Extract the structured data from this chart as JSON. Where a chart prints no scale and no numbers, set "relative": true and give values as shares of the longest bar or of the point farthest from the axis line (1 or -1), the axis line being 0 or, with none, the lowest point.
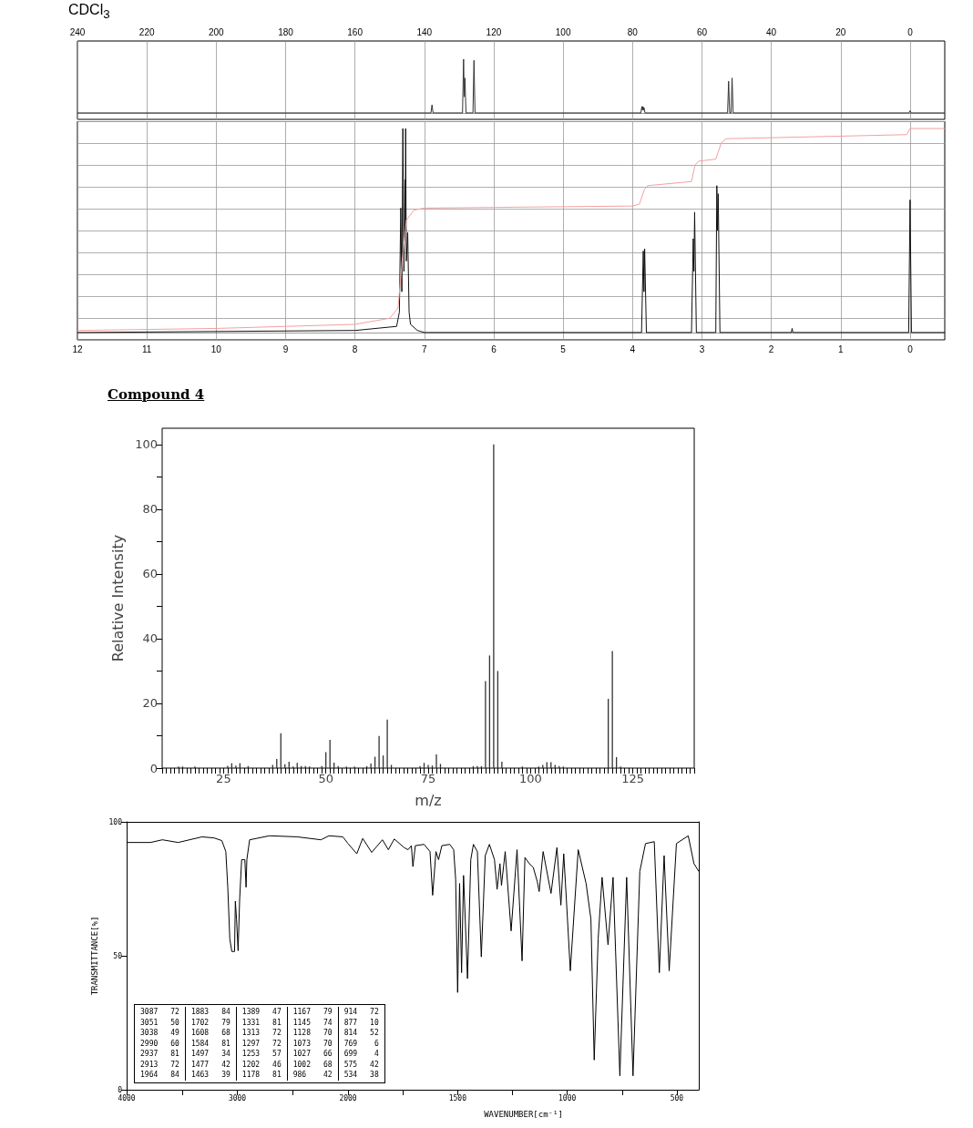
{
  "chart_data": [
    {
      "type": "line",
      "title": "CDCl$_{3}$",
      "relative": true,
      "xlim": [
        240,
        -10
      ],
      "xticks": [
        240,
        220,
        200,
        180,
        160,
        140,
        120,
        100,
        80,
        60,
        40,
        20,
        0
      ],
      "grid": "x",
      "series": [
        {
          "color": "#333333",
          "x": [
            240,
            138.1,
            137.8,
            137.5,
            129.0,
            128.7,
            128.5,
            128.3,
            128.0,
            126.0,
            125.7,
            125.4,
            77.6,
            77.3,
            77.15,
            77.0,
            76.85,
            76.7,
            76.4,
            52.6,
            52.3,
            52.0,
            51.6,
            51.3,
            51.0,
            0.3,
            0,
            -0.3,
            -10
          ],
          "values": [
            0,
            0,
            0.15,
            0,
            0,
            1.0,
            0.3,
            0.65,
            0,
            0,
            0.98,
            0,
            0,
            0.12,
            0.05,
            0.12,
            0.05,
            0.1,
            0,
            0,
            0.59,
            0,
            0,
            0.65,
            0,
            0,
            0.04,
            0,
            0
          ]
        }
      ]
    },
    {
      "type": "line",
      "relative": true,
      "xlim": [
        12,
        -0.5
      ],
      "xticks": [
        12,
        11,
        10,
        9,
        8,
        7,
        6,
        5,
        4,
        3,
        2,
        1,
        0
      ],
      "grid": true,
      "series": [
        {
          "color": "#111111",
          "x": [
            12,
            8,
            7.4,
            7.36,
            7.34,
            7.325,
            7.31,
            7.295,
            7.28,
            7.275,
            7.27,
            7.26,
            7.24,
            7.22,
            7.2,
            7.1,
            7,
            3.87,
            3.845,
            3.835,
            3.825,
            3.8,
            3.15,
            3.125,
            3.115,
            3.105,
            3.08,
            2.8,
            2.785,
            2.775,
            2.765,
            2.74,
            1.71,
            1.7,
            1.69,
            0.02,
            0,
            -0.02,
            -0.5
          ],
          "values": [
            0,
            0.01,
            0.03,
            0.1,
            0.61,
            0.2,
            1.0,
            0.3,
            0.75,
            0.5,
            1.0,
            0.35,
            0.49,
            0.1,
            0.04,
            0.01,
            0,
            0,
            0.4,
            0.2,
            0.41,
            0,
            0,
            0.46,
            0.3,
            0.59,
            0,
            0,
            0.72,
            0.5,
            0.68,
            0,
            0,
            0.02,
            0,
            0,
            0.65,
            0,
            0
          ]
        },
        {
          "color": "#f4a0a0",
          "x": [
            12,
            10,
            8,
            7.5,
            7.38,
            7.32,
            7.26,
            7.15,
            7,
            4,
            3.9,
            3.83,
            3.78,
            3.15,
            3.1,
            3.05,
            2.8,
            2.72,
            2.65,
            0.05,
            0,
            -0.5
          ],
          "values": [
            0.01,
            0.02,
            0.04,
            0.07,
            0.12,
            0.35,
            0.55,
            0.6,
            0.61,
            0.62,
            0.63,
            0.7,
            0.72,
            0.74,
            0.82,
            0.84,
            0.85,
            0.93,
            0.95,
            0.97,
            1.0,
            1.0
          ]
        }
      ]
    },
    {
      "type": "bar",
      "title": "Compound 4",
      "xlabel": "m/z",
      "ylabel": "Relative Intensity",
      "color": "#333333",
      "xlim": [
        10,
        140
      ],
      "ylim": [
        0,
        105
      ],
      "xticks": [
        {
          "value": 10,
          "label": null
        },
        {
          "value": 11,
          "label": null
        },
        {
          "value": 12,
          "label": null
        },
        {
          "value": 13,
          "label": null
        },
        {
          "value": 14,
          "label": null
        },
        {
          "value": 15,
          "label": null
        },
        {
          "value": 16,
          "label": null
        },
        {
          "value": 17,
          "label": null
        },
        {
          "value": 18,
          "label": null
        },
        {
          "value": 19,
          "label": null
        },
        {
          "value": 20,
          "label": null
        },
        {
          "value": 21,
          "label": null
        },
        {
          "value": 22,
          "label": null
        },
        {
          "value": 23,
          "label": null
        },
        {
          "value": 24,
          "label": null
        },
        25,
        {
          "value": 26,
          "label": null
        },
        {
          "value": 27,
          "label": null
        },
        {
          "value": 28,
          "label": null
        },
        {
          "value": 29,
          "label": null
        },
        {
          "value": 30,
          "label": null
        },
        {
          "value": 31,
          "label": null
        },
        {
          "value": 32,
          "label": null
        },
        {
          "value": 33,
          "label": null
        },
        {
          "value": 34,
          "label": null
        },
        {
          "value": 35,
          "label": null
        },
        {
          "value": 36,
          "label": null
        },
        {
          "value": 37,
          "label": null
        },
        {
          "value": 38,
          "label": null
        },
        {
          "value": 39,
          "label": null
        },
        {
          "value": 40,
          "label": null
        },
        {
          "value": 41,
          "label": null
        },
        {
          "value": 42,
          "label": null
        },
        {
          "value": 43,
          "label": null
        },
        {
          "value": 44,
          "label": null
        },
        {
          "value": 45,
          "label": null
        },
        {
          "value": 46,
          "label": null
        },
        {
          "value": 47,
          "label": null
        },
        {
          "value": 48,
          "label": null
        },
        {
          "value": 49,
          "label": null
        },
        50,
        {
          "value": 51,
          "label": null
        },
        {
          "value": 52,
          "label": null
        },
        {
          "value": 53,
          "label": null
        },
        {
          "value": 54,
          "label": null
        },
        {
          "value": 55,
          "label": null
        },
        {
          "value": 56,
          "label": null
        },
        {
          "value": 57,
          "label": null
        },
        {
          "value": 58,
          "label": null
        },
        {
          "value": 59,
          "label": null
        },
        {
          "value": 60,
          "label": null
        },
        {
          "value": 61,
          "label": null
        },
        {
          "value": 62,
          "label": null
        },
        {
          "value": 63,
          "label": null
        },
        {
          "value": 64,
          "label": null
        },
        {
          "value": 65,
          "label": null
        },
        {
          "value": 66,
          "label": null
        },
        {
          "value": 67,
          "label": null
        },
        {
          "value": 68,
          "label": null
        },
        {
          "value": 69,
          "label": null
        },
        {
          "value": 70,
          "label": null
        },
        {
          "value": 71,
          "label": null
        },
        {
          "value": 72,
          "label": null
        },
        {
          "value": 73,
          "label": null
        },
        {
          "value": 74,
          "label": null
        },
        75,
        {
          "value": 76,
          "label": null
        },
        {
          "value": 77,
          "label": null
        },
        {
          "value": 78,
          "label": null
        },
        {
          "value": 79,
          "label": null
        },
        {
          "value": 80,
          "label": null
        },
        {
          "value": 81,
          "label": null
        },
        {
          "value": 82,
          "label": null
        },
        {
          "value": 83,
          "label": null
        },
        {
          "value": 84,
          "label": null
        },
        {
          "value": 85,
          "label": null
        },
        {
          "value": 86,
          "label": null
        },
        {
          "value": 87,
          "label": null
        },
        {
          "value": 88,
          "label": null
        },
        {
          "value": 89,
          "label": null
        },
        {
          "value": 90,
          "label": null
        },
        {
          "value": 91,
          "label": null
        },
        {
          "value": 92,
          "label": null
        },
        {
          "value": 93,
          "label": null
        },
        {
          "value": 94,
          "label": null
        },
        {
          "value": 95,
          "label": null
        },
        {
          "value": 96,
          "label": null
        },
        {
          "value": 97,
          "label": null
        },
        {
          "value": 98,
          "label": null
        },
        {
          "value": 99,
          "label": null
        },
        100,
        {
          "value": 101,
          "label": null
        },
        {
          "value": 102,
          "label": null
        },
        {
          "value": 103,
          "label": null
        },
        {
          "value": 104,
          "label": null
        },
        {
          "value": 105,
          "label": null
        },
        {
          "value": 106,
          "label": null
        },
        {
          "value": 107,
          "label": null
        },
        {
          "value": 108,
          "label": null
        },
        {
          "value": 109,
          "label": null
        },
        {
          "value": 110,
          "label": null
        },
        {
          "value": 111,
          "label": null
        },
        {
          "value": 112,
          "label": null
        },
        {
          "value": 113,
          "label": null
        },
        {
          "value": 114,
          "label": null
        },
        {
          "value": 115,
          "label": null
        },
        {
          "value": 116,
          "label": null
        },
        {
          "value": 117,
          "label": null
        },
        {
          "value": 118,
          "label": null
        },
        {
          "value": 119,
          "label": null
        },
        {
          "value": 120,
          "label": null
        },
        {
          "value": 121,
          "label": null
        },
        {
          "value": 122,
          "label": null
        },
        {
          "value": 123,
          "label": null
        },
        {
          "value": 124,
          "label": null
        },
        125,
        {
          "value": 126,
          "label": null
        },
        {
          "value": 127,
          "label": null
        },
        {
          "value": 128,
          "label": null
        },
        {
          "value": 129,
          "label": null
        },
        {
          "value": 130,
          "label": null
        },
        {
          "value": 131,
          "label": null
        },
        {
          "value": 132,
          "label": null
        },
        {
          "value": 133,
          "label": null
        },
        {
          "value": 134,
          "label": null
        },
        {
          "value": 135,
          "label": null
        },
        {
          "value": 136,
          "label": null
        },
        {
          "value": 137,
          "label": null
        },
        {
          "value": 138,
          "label": null
        },
        {
          "value": 139,
          "label": null
        },
        {
          "value": 140,
          "label": null
        }
      ],
      "yticks": [
        0,
        {
          "value": 10,
          "label": null
        },
        20,
        {
          "value": 30,
          "label": null
        },
        40,
        {
          "value": 50,
          "label": null
        },
        60,
        {
          "value": 70,
          "label": null
        },
        80,
        {
          "value": 90,
          "label": null
        },
        100
      ],
      "x": [
        14,
        15,
        18,
        26,
        27,
        28,
        29,
        31,
        37,
        38,
        39,
        40,
        41,
        42,
        43,
        44,
        45,
        46,
        49,
        50,
        51,
        52,
        53,
        55,
        57,
        60,
        61,
        62,
        63,
        64,
        65,
        66,
        73,
        74,
        75,
        76,
        77,
        78,
        86,
        87,
        88,
        89,
        90,
        91,
        92,
        93,
        98,
        102,
        103,
        104,
        105,
        106,
        107,
        108,
        119,
        120,
        121,
        122
      ],
      "values": [
        0.5,
        0.5,
        0.5,
        0.7,
        1.5,
        0.8,
        1.5,
        0.6,
        1.0,
        2.8,
        10.8,
        1.2,
        2.0,
        0.5,
        1.6,
        0.6,
        0.6,
        0.5,
        0.6,
        4.9,
        8.7,
        1.7,
        0.6,
        0.5,
        0.5,
        0.6,
        1.4,
        3.5,
        9.9,
        3.9,
        15.0,
        1.0,
        0.6,
        1.6,
        1.0,
        0.8,
        4.2,
        1.3,
        0.6,
        0.6,
        0.6,
        26.9,
        34.8,
        100,
        30.0,
        2.0,
        0.5,
        0.5,
        1.0,
        1.8,
        1.8,
        1.0,
        0.6,
        0.5,
        21.4,
        36.2,
        3.4,
        0.5
      ]
    },
    {
      "type": "line",
      "ylabel": "TRANSMITTANCE[%]",
      "xlim": [
        4000,
        2000
      ],
      "xticks": [
        4000,
        {
          "value": 3500,
          "label": null
        },
        3000,
        {
          "value": 2500,
          "label": null
        }
      ],
      "ylim": [
        0,
        100
      ],
      "yticks": [
        0,
        50,
        100
      ],
      "annotations": [
        "3087 72",
        "3051 50",
        "3038 49",
        "2990 60",
        "2937 81",
        "2913 72",
        "1964 84",
        "1883 84",
        "1702 79",
        "1608 68",
        "1584 81",
        "1497 34",
        "1477 42",
        "1463 39",
        "1389 47",
        "1331 81",
        "1313 72",
        "1297 72",
        "1253 57",
        "1202 46",
        "1178 81",
        "1167 79",
        "1145 74",
        "1128 70",
        "1073 70",
        "1027 66",
        "1002 68",
        "986 42",
        "914 72",
        "877 10",
        "814 52",
        "769 6",
        "699 4",
        "575 42",
        "534 38"
      ],
      "series": [
        {
          "color": "#000000",
          "x": [
            4000,
            3785,
            3677,
            3534,
            3319,
            3211,
            3140,
            3104,
            3086,
            3068,
            3050,
            3025,
            3018,
            3007,
            2993,
            2979,
            2961,
            2932,
            2921,
            2914,
            2889,
            2710,
            2459,
            2244,
            2172,
            2047,
            2000
          ],
          "values": [
            92.3,
            92.3,
            93.3,
            92.3,
            94.4,
            94,
            93,
            88.9,
            75.3,
            56.3,
            51.6,
            51.6,
            70.4,
            63.7,
            51.9,
            71.1,
            85.9,
            85.9,
            75.6,
            85.9,
            93.3,
            94.8,
            94.4,
            93.3,
            94.8,
            94.4,
            91.9
          ]
        }
      ]
    },
    {
      "type": "line",
      "xlabel": "WAVENUMBER[cm⁻¹]",
      "xlim": [
        2000,
        400
      ],
      "xticks": [
        2000,
        {
          "value": 1750,
          "label": null
        },
        1500,
        {
          "value": 1250,
          "label": null
        },
        1000,
        {
          "value": 750,
          "label": null
        },
        500
      ],
      "ylim": [
        0,
        100
      ],
      "tick_labels": "x",
      "series": [
        {
          "color": "#000000",
          "x": [
            2000,
            1960,
            1933,
            1892,
            1843,
            1816,
            1789,
            1744,
            1726,
            1711,
            1704,
            1693,
            1653,
            1626,
            1614,
            1599,
            1587,
            1572,
            1536,
            1518,
            1509,
            1500,
            1491,
            1482,
            1473,
            1455,
            1440,
            1428,
            1410,
            1392,
            1374,
            1355,
            1332,
            1320,
            1307,
            1300,
            1283,
            1256,
            1229,
            1206,
            1193,
            1173,
            1155,
            1137,
            1128,
            1110,
            1074,
            1047,
            1029,
            1016,
            1004,
            986,
            950,
            914,
            892,
            877,
            859,
            841,
            814,
            791,
            760,
            729,
            700,
            669,
            643,
            603,
            580,
            558,
            535,
            502,
            448,
            422,
            400
          ],
          "values": [
            91.9,
            88.1,
            93.8,
            88.6,
            93.3,
            89.6,
            93.6,
            90.4,
            89.6,
            91.1,
            83.3,
            91.1,
            91.6,
            88.9,
            72.6,
            88.9,
            85.9,
            91.1,
            91.6,
            89.6,
            78.5,
            36.3,
            77,
            43.7,
            80,
            41.5,
            85.9,
            91.6,
            88.9,
            49.6,
            87.4,
            91.6,
            85.9,
            74.8,
            84.4,
            76.3,
            88.9,
            59.3,
            89.6,
            48.1,
            86.7,
            84.4,
            83,
            77.8,
            74,
            88.9,
            73.3,
            90.4,
            68.9,
            88.1,
            71.1,
            44.4,
            89.6,
            77,
            63.7,
            11.1,
            56.3,
            79.3,
            54.1,
            79.3,
            5.2,
            79.3,
            5.2,
            81.5,
            91.9,
            92.6,
            43.7,
            87.4,
            44.4,
            91.9,
            94.8,
            84.4,
            81.5
          ]
        }
      ]
    }
  ]
}
